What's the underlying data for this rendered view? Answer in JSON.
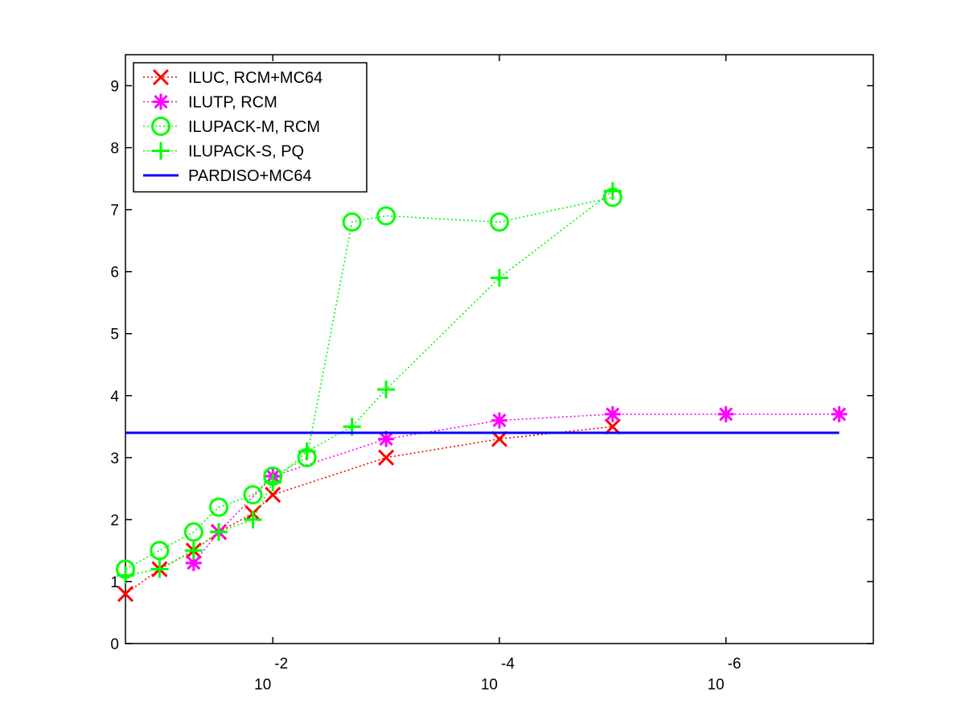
{
  "chart_data": {
    "type": "line",
    "title": "",
    "xlabel": "",
    "ylabel": "",
    "x_scale": "log",
    "x_reversed": true,
    "xlim": [
      0.2,
      5e-08
    ],
    "ylim": [
      0,
      9.5
    ],
    "xticks": [
      {
        "value": 0.01,
        "base": "10",
        "exponent": "-2"
      },
      {
        "value": 0.0001,
        "base": "10",
        "exponent": "-4"
      },
      {
        "value": 1e-06,
        "base": "10",
        "exponent": "-6"
      }
    ],
    "yticks": [
      "0",
      "1",
      "2",
      "3",
      "4",
      "5",
      "6",
      "7",
      "8",
      "9"
    ],
    "grid": false,
    "legend_position": "top-left",
    "series": [
      {
        "name": "ILUC, RCM+MC64",
        "color": "#ff0000",
        "marker": "x",
        "line": "dotted",
        "points": [
          [
            0.2,
            0.8
          ],
          [
            0.1,
            1.2
          ],
          [
            0.05,
            1.5
          ],
          [
            0.03,
            1.8
          ],
          [
            0.015,
            2.1
          ],
          [
            0.01,
            2.4
          ],
          [
            0.001,
            3.0
          ],
          [
            0.0001,
            3.3
          ],
          [
            1e-05,
            3.5
          ]
        ]
      },
      {
        "name": "ILUTP, RCM",
        "color": "#ff00ff",
        "marker": "star",
        "line": "dotted",
        "points": [
          [
            0.05,
            1.3
          ],
          [
            0.03,
            1.8
          ],
          [
            0.01,
            2.7
          ],
          [
            0.001,
            3.3
          ],
          [
            0.0001,
            3.6
          ],
          [
            1e-05,
            3.7
          ],
          [
            1e-06,
            3.7
          ],
          [
            1e-07,
            3.7
          ]
        ]
      },
      {
        "name": "ILUPACK-M, RCM",
        "color": "#00ff00",
        "marker": "circle",
        "line": "dotted",
        "points": [
          [
            0.2,
            1.2
          ],
          [
            0.1,
            1.5
          ],
          [
            0.05,
            1.8
          ],
          [
            0.03,
            2.2
          ],
          [
            0.015,
            2.4
          ],
          [
            0.01,
            2.7
          ],
          [
            0.005,
            3.0
          ],
          [
            0.002,
            6.8
          ],
          [
            0.001,
            6.9
          ],
          [
            0.0001,
            6.8
          ],
          [
            1e-05,
            7.2
          ]
        ]
      },
      {
        "name": "ILUPACK-S, PQ",
        "color": "#00ff00",
        "marker": "plus",
        "line": "dotted",
        "points": [
          [
            0.2,
            1.1
          ],
          [
            0.1,
            1.2
          ],
          [
            0.05,
            1.5
          ],
          [
            0.03,
            1.8
          ],
          [
            0.015,
            2.0
          ],
          [
            0.01,
            2.6
          ],
          [
            0.005,
            3.1
          ],
          [
            0.002,
            3.5
          ],
          [
            0.001,
            4.1
          ],
          [
            0.0001,
            5.9
          ],
          [
            1e-05,
            7.3
          ]
        ]
      },
      {
        "name": "PARDISO+MC64",
        "color": "#0000ff",
        "marker": "none",
        "line": "solid",
        "points": [
          [
            0.2,
            3.4
          ],
          [
            1e-07,
            3.4
          ]
        ]
      }
    ]
  }
}
